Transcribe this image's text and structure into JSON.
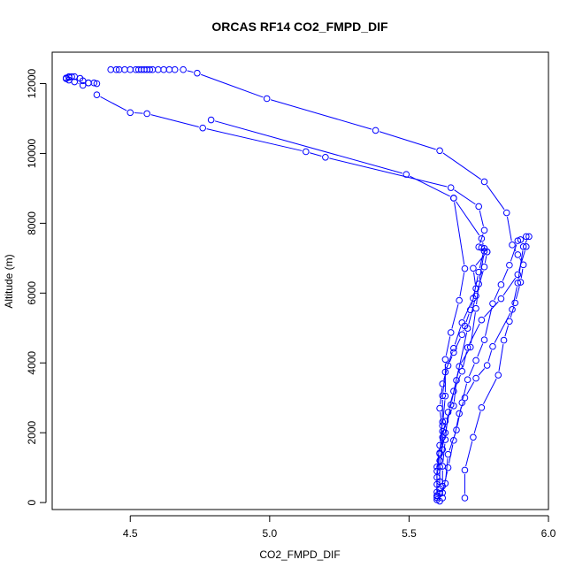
{
  "chart_data": {
    "type": "scatter",
    "title": "ORCAS RF14 CO2_FMPD_DIF",
    "xlabel": "CO2_FMPD_DIF",
    "ylabel": "Altitude (m)",
    "xlim": [
      4.22,
      6.0
    ],
    "ylim": [
      -200,
      12900
    ],
    "xticks": [
      4.5,
      5.0,
      5.5,
      6.0
    ],
    "xtick_labels": [
      "4.5",
      "5.0",
      "5.5",
      "6.0"
    ],
    "yticks": [
      0,
      2000,
      4000,
      6000,
      8000,
      10000,
      12000
    ],
    "ytick_labels": [
      "0",
      "2000",
      "4000",
      "6000",
      "8000",
      "10000",
      "12000"
    ],
    "grid": false,
    "colors": {
      "series": "#0000ff",
      "axis": "#000000",
      "background": "#ffffff"
    },
    "series": [
      {
        "points": [
          [
            4.43,
            12400
          ],
          [
            4.45,
            12400
          ],
          [
            4.46,
            12400
          ],
          [
            4.48,
            12400
          ],
          [
            4.5,
            12400
          ],
          [
            4.52,
            12400
          ],
          [
            4.53,
            12400
          ],
          [
            4.54,
            12400
          ],
          [
            4.55,
            12400
          ],
          [
            4.56,
            12400
          ],
          [
            4.57,
            12400
          ],
          [
            4.58,
            12400
          ],
          [
            4.6,
            12400
          ],
          [
            4.62,
            12400
          ],
          [
            4.64,
            12400
          ],
          [
            4.66,
            12400
          ],
          [
            4.69,
            12400
          ],
          [
            4.74,
            12300
          ],
          [
            4.99,
            11570
          ],
          [
            5.38,
            10660
          ],
          [
            5.61,
            10080
          ],
          [
            5.77,
            9190
          ],
          [
            5.85,
            8300
          ],
          [
            5.87,
            7380
          ],
          [
            5.89,
            7100
          ],
          [
            5.91,
            6810
          ],
          [
            5.9,
            6310
          ],
          [
            5.88,
            5720
          ],
          [
            5.86,
            5190
          ],
          [
            5.84,
            4650
          ],
          [
            5.82,
            3650
          ],
          [
            5.76,
            2720
          ],
          [
            5.73,
            1870
          ],
          [
            5.7,
            930
          ],
          [
            5.7,
            130
          ]
        ]
      },
      {
        "points": [
          [
            4.38,
            11680
          ],
          [
            4.5,
            11170
          ],
          [
            4.56,
            11140
          ],
          [
            4.76,
            10730
          ],
          [
            5.13,
            10050
          ],
          [
            5.2,
            9890
          ],
          [
            5.65,
            9020
          ],
          [
            5.75,
            8480
          ],
          [
            5.77,
            7800
          ],
          [
            5.75,
            7320
          ],
          [
            5.78,
            7180
          ],
          [
            5.73,
            6710
          ],
          [
            5.74,
            6130
          ],
          [
            5.72,
            5520
          ],
          [
            5.7,
            5060
          ],
          [
            5.69,
            4810
          ],
          [
            5.66,
            4300
          ],
          [
            5.64,
            3920
          ],
          [
            5.62,
            3400
          ],
          [
            5.61,
            2700
          ],
          [
            5.62,
            2040
          ],
          [
            5.62,
            1520
          ],
          [
            5.61,
            1020
          ],
          [
            5.61,
            400
          ],
          [
            5.6,
            140
          ]
        ]
      },
      {
        "points": [
          [
            4.27,
            12160
          ],
          [
            4.28,
            12200
          ],
          [
            4.3,
            12200
          ],
          [
            4.32,
            12150
          ],
          [
            4.33,
            12080
          ],
          [
            4.35,
            12020
          ],
          [
            4.37,
            12020
          ],
          [
            4.38,
            12000
          ],
          [
            4.35,
            12020
          ],
          [
            4.33,
            11950
          ],
          [
            4.3,
            12050
          ],
          [
            4.28,
            12100
          ],
          [
            4.27,
            12140
          ],
          [
            4.28,
            12180
          ],
          [
            4.29,
            12200
          ]
        ]
      },
      {
        "points": [
          [
            4.79,
            10960
          ],
          [
            5.49,
            9400
          ],
          [
            5.66,
            8720
          ],
          [
            5.76,
            7560
          ],
          [
            5.77,
            7280
          ],
          [
            5.75,
            6600
          ],
          [
            5.73,
            5850
          ],
          [
            5.69,
            5150
          ],
          [
            5.66,
            4420
          ],
          [
            5.63,
            3740
          ],
          [
            5.62,
            3060
          ],
          [
            5.62,
            2310
          ],
          [
            5.61,
            1640
          ],
          [
            5.6,
            1020
          ],
          [
            5.6,
            520
          ],
          [
            5.6,
            80
          ]
        ]
      },
      {
        "points": [
          [
            5.66,
            8720
          ],
          [
            5.7,
            6700
          ],
          [
            5.68,
            5790
          ],
          [
            5.65,
            4870
          ],
          [
            5.63,
            4100
          ],
          [
            5.63,
            3050
          ],
          [
            5.62,
            2200
          ],
          [
            5.61,
            1420
          ],
          [
            5.6,
            720
          ],
          [
            5.6,
            200
          ]
        ]
      },
      {
        "points": [
          [
            5.92,
            7620
          ],
          [
            5.9,
            7530
          ],
          [
            5.89,
            7500
          ],
          [
            5.86,
            6800
          ],
          [
            5.83,
            6240
          ],
          [
            5.8,
            5700
          ],
          [
            5.77,
            4660
          ],
          [
            5.74,
            4070
          ],
          [
            5.71,
            3520
          ],
          [
            5.69,
            2860
          ],
          [
            5.67,
            2080
          ],
          [
            5.64,
            1380
          ],
          [
            5.63,
            550
          ],
          [
            5.61,
            40
          ]
        ]
      },
      {
        "points": [
          [
            5.93,
            7620
          ],
          [
            5.91,
            7330
          ],
          [
            5.89,
            6290
          ],
          [
            5.87,
            5530
          ],
          [
            5.8,
            4470
          ],
          [
            5.78,
            3930
          ],
          [
            5.74,
            3560
          ],
          [
            5.7,
            3000
          ],
          [
            5.68,
            2550
          ],
          [
            5.66,
            1780
          ],
          [
            5.64,
            1000
          ],
          [
            5.62,
            280
          ],
          [
            5.62,
            130
          ]
        ]
      },
      {
        "points": [
          [
            5.92,
            7330
          ],
          [
            5.89,
            6530
          ],
          [
            5.83,
            5840
          ],
          [
            5.76,
            5230
          ],
          [
            5.71,
            4440
          ],
          [
            5.69,
            3760
          ],
          [
            5.66,
            3190
          ],
          [
            5.64,
            2590
          ],
          [
            5.63,
            1800
          ],
          [
            5.62,
            1040
          ],
          [
            5.62,
            470
          ],
          [
            5.61,
            260
          ]
        ]
      },
      {
        "points": [
          [
            5.76,
            7300
          ],
          [
            5.78,
            7180
          ],
          [
            5.77,
            6750
          ],
          [
            5.74,
            5920
          ],
          [
            5.71,
            4990
          ],
          [
            5.67,
            3500
          ],
          [
            5.66,
            2770
          ],
          [
            5.63,
            2330
          ],
          [
            5.62,
            1870
          ],
          [
            5.61,
            1400
          ],
          [
            5.6,
            900
          ],
          [
            5.6,
            190
          ]
        ]
      },
      {
        "points": [
          [
            5.77,
            7200
          ],
          [
            5.75,
            6260
          ],
          [
            5.74,
            5560
          ],
          [
            5.72,
            4450
          ],
          [
            5.68,
            3900
          ],
          [
            5.65,
            2800
          ],
          [
            5.63,
            2000
          ],
          [
            5.61,
            1200
          ],
          [
            5.61,
            600
          ],
          [
            5.6,
            300
          ]
        ]
      }
    ]
  }
}
